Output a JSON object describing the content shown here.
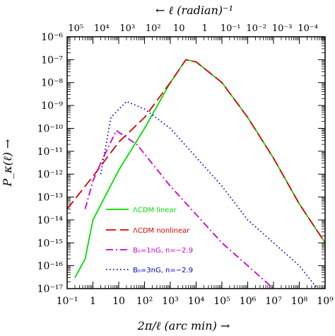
{
  "chart_data": {
    "type": "line",
    "xlabel": "2π/ℓ (arc min) →",
    "ylabel": "P_κ(ℓ) →",
    "top_xlabel": "← ℓ (radian)⁻¹",
    "x_scale": "log",
    "y_scale": "log",
    "xlim": [
      0.1,
      1000000000.0
    ],
    "ylim": [
      1e-17,
      1e-06
    ],
    "x_ticks": [
      "10⁻¹",
      "1",
      "10",
      "10²",
      "10³",
      "10⁴",
      "10⁵",
      "10⁶",
      "10⁷",
      "10⁸",
      "10⁹"
    ],
    "y_ticks": [
      "10⁻¹⁷",
      "10⁻¹⁶",
      "10⁻¹⁵",
      "10⁻¹⁴",
      "10⁻¹³",
      "10⁻¹²",
      "10⁻¹¹",
      "10⁻¹⁰",
      "10⁻⁹",
      "10⁻⁸",
      "10⁻⁷",
      "10⁻⁶"
    ],
    "top_ticks": [
      "10⁵",
      "10⁴",
      "10³",
      "10²",
      "10",
      "1",
      "10⁻¹",
      "10⁻²",
      "10⁻³",
      "10⁻⁴"
    ],
    "grid": false,
    "legend_position": "lower-left",
    "series": [
      {
        "name": "ΛCDM linear",
        "color": "#00dd00",
        "style": "solid",
        "points": [
          [
            0.2,
            3e-17
          ],
          [
            0.5,
            2e-16
          ],
          [
            1,
            1e-14
          ],
          [
            10,
            1.5e-12
          ],
          [
            100,
            1e-10
          ],
          [
            1000,
            1e-08
          ],
          [
            4000,
            1e-07
          ],
          [
            10000,
            8e-08
          ],
          [
            100000,
            1e-08
          ],
          [
            1000000,
            3e-10
          ],
          [
            10000000,
            5e-12
          ],
          [
            100000000,
            5e-14
          ],
          [
            1000000000,
            1e-15
          ]
        ]
      },
      {
        "name": "ΛCDM nonlinear",
        "color": "#dd0000",
        "style": "dashed",
        "points": [
          [
            0.1,
            3e-14
          ],
          [
            1,
            8e-13
          ],
          [
            10,
            2.5e-11
          ],
          [
            100,
            3e-10
          ],
          [
            1000,
            1e-08
          ],
          [
            4000,
            1e-07
          ],
          [
            10000,
            8e-08
          ],
          [
            100000,
            1e-08
          ],
          [
            1000000,
            3e-10
          ],
          [
            10000000,
            5e-12
          ],
          [
            100000000,
            5e-14
          ],
          [
            1000000000,
            1e-15
          ]
        ]
      },
      {
        "name": "B₀=1nG, n=−2.9",
        "color": "#cc00cc",
        "style": "dashdot",
        "points": [
          [
            0.5,
            3e-14
          ],
          [
            1,
            5e-13
          ],
          [
            2,
            3e-12
          ],
          [
            8,
            8e-11
          ],
          [
            50,
            2e-11
          ],
          [
            1000,
            3e-13
          ],
          [
            100000,
            1e-15
          ],
          [
            1000000,
            1e-16
          ],
          [
            10000000,
            1e-17
          ]
        ]
      },
      {
        "name": "B₀=3nG, n=−2.9",
        "color": "#0000cc",
        "style": "dotted",
        "points": [
          [
            2,
            1e-12
          ],
          [
            5,
            3e-10
          ],
          [
            20,
            1.5e-09
          ],
          [
            100,
            7e-10
          ],
          [
            1000,
            1e-10
          ],
          [
            100000,
            3e-13
          ],
          [
            1000000,
            1e-14
          ],
          [
            10000000,
            1e-15
          ],
          [
            100000000,
            1e-16
          ],
          [
            500000000,
            1e-17
          ]
        ]
      }
    ]
  }
}
